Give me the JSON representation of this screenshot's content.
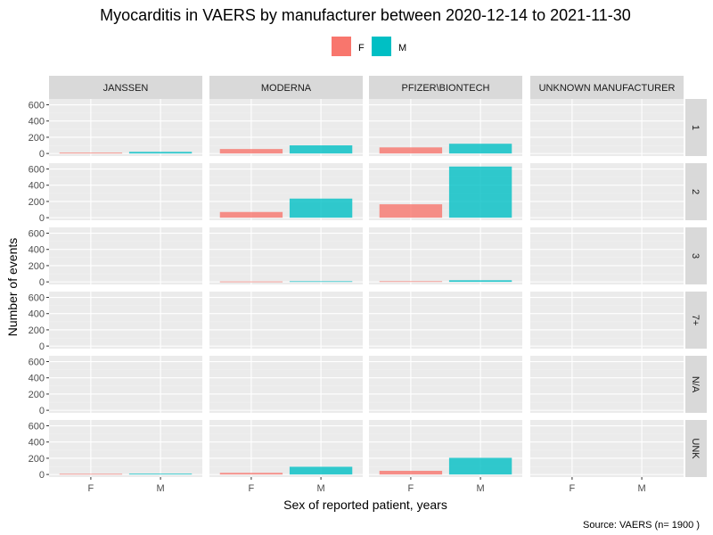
{
  "chart_data": {
    "type": "bar",
    "title": "Myocarditis in VAERS by manufacturer between 2020-12-14 to 2021-11-30",
    "xlabel": "Sex of reported patient, years",
    "ylabel": "Number of events",
    "caption": "Source: VAERS (n= 1900 )",
    "legend": {
      "position": "top",
      "entries": [
        {
          "label": "F",
          "color": "#F8766D"
        },
        {
          "label": "M",
          "color": "#00BFC4"
        }
      ]
    },
    "categories": [
      "F",
      "M"
    ],
    "columns": [
      "JANSSEN",
      "MODERNA",
      "PFIZER\\BIONTECH",
      "UNKNOWN MANUFACTURER"
    ],
    "rows": [
      "1",
      "2",
      "3",
      "7+",
      "N/A",
      "UNK"
    ],
    "ylim": [
      0,
      640
    ],
    "yticks": [
      0,
      200,
      400,
      600
    ],
    "grid": true,
    "panels": [
      {
        "row": "1",
        "column": "JANSSEN",
        "values": [
          10,
          20
        ]
      },
      {
        "row": "1",
        "column": "MODERNA",
        "values": [
          55,
          100
        ]
      },
      {
        "row": "1",
        "column": "PFIZER\\BIONTECH",
        "values": [
          75,
          120
        ]
      },
      {
        "row": "1",
        "column": "UNKNOWN MANUFACTURER",
        "values": [
          0,
          0
        ]
      },
      {
        "row": "2",
        "column": "JANSSEN",
        "values": [
          0,
          0
        ]
      },
      {
        "row": "2",
        "column": "MODERNA",
        "values": [
          70,
          235
        ]
      },
      {
        "row": "2",
        "column": "PFIZER\\BIONTECH",
        "values": [
          165,
          630
        ]
      },
      {
        "row": "2",
        "column": "UNKNOWN MANUFACTURER",
        "values": [
          0,
          0
        ]
      },
      {
        "row": "3",
        "column": "JANSSEN",
        "values": [
          0,
          0
        ]
      },
      {
        "row": "3",
        "column": "MODERNA",
        "values": [
          5,
          8
        ]
      },
      {
        "row": "3",
        "column": "PFIZER\\BIONTECH",
        "values": [
          8,
          20
        ]
      },
      {
        "row": "3",
        "column": "UNKNOWN MANUFACTURER",
        "values": [
          0,
          0
        ]
      },
      {
        "row": "7+",
        "column": "JANSSEN",
        "values": [
          0,
          0
        ]
      },
      {
        "row": "7+",
        "column": "MODERNA",
        "values": [
          0,
          0
        ]
      },
      {
        "row": "7+",
        "column": "PFIZER\\BIONTECH",
        "values": [
          0,
          0
        ]
      },
      {
        "row": "7+",
        "column": "UNKNOWN MANUFACTURER",
        "values": [
          0,
          0
        ]
      },
      {
        "row": "N/A",
        "column": "JANSSEN",
        "values": [
          0,
          0
        ]
      },
      {
        "row": "N/A",
        "column": "MODERNA",
        "values": [
          0,
          0
        ]
      },
      {
        "row": "N/A",
        "column": "PFIZER\\BIONTECH",
        "values": [
          0,
          0
        ]
      },
      {
        "row": "N/A",
        "column": "UNKNOWN MANUFACTURER",
        "values": [
          0,
          0
        ]
      },
      {
        "row": "UNK",
        "column": "JANSSEN",
        "values": [
          8,
          10
        ]
      },
      {
        "row": "UNK",
        "column": "MODERNA",
        "values": [
          20,
          95
        ]
      },
      {
        "row": "UNK",
        "column": "PFIZER\\BIONTECH",
        "values": [
          45,
          205
        ]
      },
      {
        "row": "UNK",
        "column": "UNKNOWN MANUFACTURER",
        "values": [
          0,
          0
        ]
      }
    ]
  }
}
